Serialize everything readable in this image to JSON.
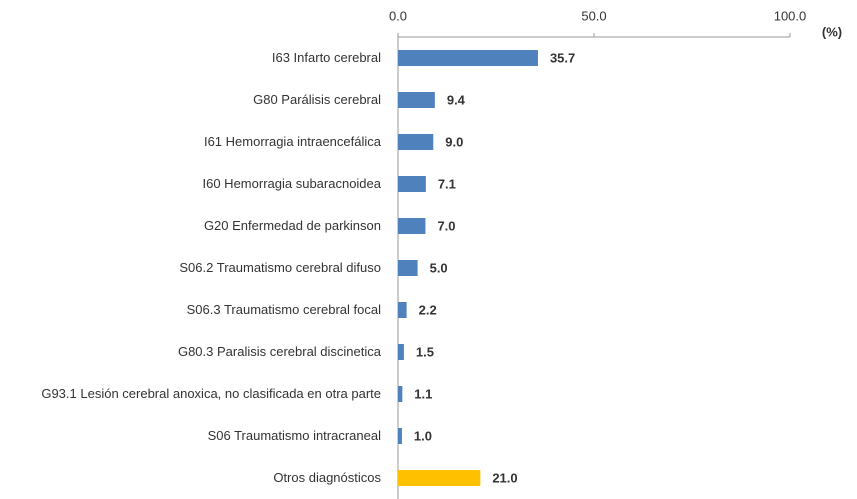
{
  "chart_data": {
    "type": "hbar",
    "categories": [
      "I63  Infarto cerebral",
      "G80  Parálisis cerebral",
      "I61  Hemorragia intraencefálica",
      "I60  Hemorragia subaracnoidea",
      "G20  Enfermedad de parkinson",
      "S06.2  Traumatismo cerebral difuso",
      "S06.3  Traumatismo cerebral focal",
      "G80.3  Paralisis cerebral discinetica",
      "G93.1  Lesión cerebral anoxica, no clasificada en otra parte",
      "S06  Traumatismo intracraneal",
      "Otros diagnósticos"
    ],
    "values": [
      35.7,
      9.4,
      9.0,
      7.1,
      7.0,
      5.0,
      2.2,
      1.5,
      1.1,
      1.0,
      21.0
    ],
    "value_labels": [
      "35.7",
      "9.4",
      "9.0",
      "7.1",
      "7.0",
      "5.0",
      "2.2",
      "1.5",
      "1.1",
      "1.0",
      "21.0"
    ],
    "colors": [
      "#4f81bd",
      "#4f81bd",
      "#4f81bd",
      "#4f81bd",
      "#4f81bd",
      "#4f81bd",
      "#4f81bd",
      "#4f81bd",
      "#4f81bd",
      "#4f81bd",
      "#ffc000"
    ],
    "label_colors": [
      "#1f1fbf",
      "#1f1fbf",
      "#1f1fbf",
      "#1f1fbf",
      "#1f1fbf",
      "#1f1fbf",
      "#1f1fbf",
      "#1f1fbf",
      "#1f1fbf",
      "#1f1fbf",
      "#e01010"
    ],
    "xlim": [
      0,
      100
    ],
    "xticks": [
      {
        "value": 0,
        "label": "0.0"
      },
      {
        "value": 50,
        "label": "50.0"
      },
      {
        "value": 100,
        "label": "100.0"
      }
    ],
    "x_unit": "(%)"
  }
}
